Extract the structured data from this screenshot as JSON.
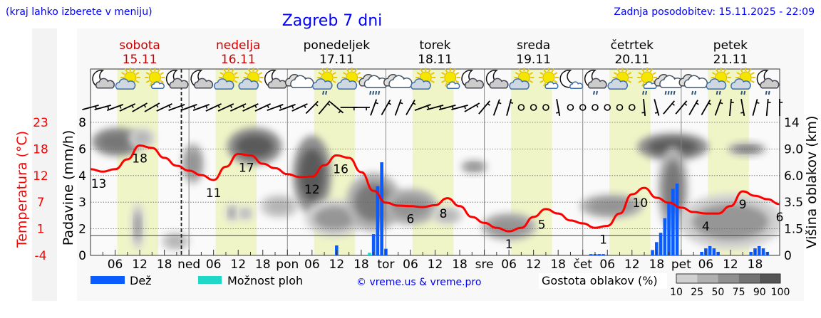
{
  "header": {
    "hint": "(kraj lahko izberete v meniju)",
    "title": "Zagreb 7 dni",
    "updated": "Zadnja posodobitev: 15.11.2025 - 22:09"
  },
  "legend": {
    "rain": "Dež",
    "shower": "Možnost ploh",
    "copyright": "© vreme.us & vreme.pro",
    "cloud_density": "Gostota oblakov (%)",
    "scale_labels": [
      "10",
      "25",
      "50",
      "75",
      "90",
      "100"
    ],
    "scale_colors": [
      "#d0d0d0",
      "#b0b0b0",
      "#909090",
      "#737373",
      "#555555"
    ]
  },
  "colors": {
    "temperature": "#ff0000",
    "rain": "#0a5cff",
    "shower": "#1fd8c8",
    "weekend": "#cc0000",
    "daylight": "#f0f5c8",
    "header": "#0000ff"
  },
  "chart_data": {
    "type": "line",
    "start": "2025-11-15T00:00",
    "end": "2025-11-22T00:00",
    "now": "2025-11-15T22:09",
    "days": [
      {
        "name": "sobota",
        "date": "15.11",
        "weekend": true
      },
      {
        "name": "nedelja",
        "date": "16.11",
        "weekend": true
      },
      {
        "name": "ponedeljek",
        "date": "17.11",
        "weekend": false
      },
      {
        "name": "torek",
        "date": "18.11",
        "weekend": false
      },
      {
        "name": "sreda",
        "date": "19.11",
        "weekend": false
      },
      {
        "name": "četrtek",
        "date": "20.11",
        "weekend": false
      },
      {
        "name": "petek",
        "date": "21.11",
        "weekend": false
      }
    ],
    "x_tick_labels": [
      "06",
      "12",
      "18"
    ],
    "day_abbr": [
      "",
      "ned",
      "pon",
      "tor",
      "sre",
      "čet",
      "pet"
    ],
    "daylight_hours": [
      6.5,
      16.5
    ],
    "temperature": {
      "label": "Temperatura (°C)",
      "ticks": [
        "23",
        "18",
        "12",
        "7",
        "1",
        "-4"
      ],
      "range": [
        -4,
        23
      ],
      "step_hours": 3,
      "values": [
        13.5,
        13,
        13.5,
        15.5,
        18.3,
        17.8,
        15.8,
        14.2,
        13.2,
        12.3,
        11.3,
        14,
        16.6,
        16.3,
        14.6,
        13.7,
        12.5,
        11.9,
        12,
        14.3,
        16.3,
        15.8,
        12.9,
        9.1,
        6.7,
        6.1,
        6,
        5.8,
        6.2,
        7.6,
        6,
        3.8,
        2.6,
        1.6,
        0.9,
        1.6,
        3.8,
        5.4,
        4.5,
        3.1,
        2.5,
        1.6,
        2,
        4.5,
        8.4,
        9.7,
        7.7,
        6.7,
        5.7,
        4.8,
        4.5,
        4.5,
        6,
        9,
        8.1,
        7.4,
        6.4
      ],
      "annotations": [
        {
          "t": "2025-11-15T02:00",
          "text": "13"
        },
        {
          "t": "2025-11-15T12:00",
          "text": "18"
        },
        {
          "t": "2025-11-16T06:00",
          "text": "11"
        },
        {
          "t": "2025-11-16T14:00",
          "text": "17"
        },
        {
          "t": "2025-11-17T06:00",
          "text": "12"
        },
        {
          "t": "2025-11-17T13:00",
          "text": "16"
        },
        {
          "t": "2025-11-18T06:00",
          "text": "6"
        },
        {
          "t": "2025-11-18T14:00",
          "text": "8"
        },
        {
          "t": "2025-11-19T06:00",
          "text": "1"
        },
        {
          "t": "2025-11-19T14:00",
          "text": "5"
        },
        {
          "t": "2025-11-20T05:00",
          "text": "1"
        },
        {
          "t": "2025-11-20T14:00",
          "text": "10"
        },
        {
          "t": "2025-11-21T06:00",
          "text": "4"
        },
        {
          "t": "2025-11-21T15:00",
          "text": "9"
        },
        {
          "t": "2025-11-22T00:00",
          "text": "6"
        }
      ]
    },
    "precipitation": {
      "label": "Padavine (mm/h)",
      "ticks": [
        "8",
        "6",
        "4",
        "3",
        "2",
        "0"
      ],
      "tick_values": [
        8,
        6,
        4,
        3,
        2,
        0
      ],
      "bars": [
        {
          "t": "2025-11-17T12:00",
          "mm": 0.75,
          "kind": "rain"
        },
        {
          "t": "2025-11-17T20:00",
          "mm": 0.2,
          "kind": "shower"
        },
        {
          "t": "2025-11-17T21:00",
          "mm": 1.6,
          "kind": "rain"
        },
        {
          "t": "2025-11-17T22:00",
          "mm": 3.6,
          "kind": "rain"
        },
        {
          "t": "2025-11-17T23:00",
          "mm": 5.0,
          "kind": "rain"
        },
        {
          "t": "2025-11-18T00:00",
          "mm": 0.5,
          "kind": "rain"
        },
        {
          "t": "2025-11-20T02:00",
          "mm": 0.1,
          "kind": "rain"
        },
        {
          "t": "2025-11-20T03:00",
          "mm": 0.1,
          "kind": "rain"
        },
        {
          "t": "2025-11-20T04:00",
          "mm": 0.1,
          "kind": "rain"
        },
        {
          "t": "2025-11-20T05:00",
          "mm": 0.1,
          "kind": "rain"
        },
        {
          "t": "2025-11-20T17:00",
          "mm": 0.4,
          "kind": "rain"
        },
        {
          "t": "2025-11-20T18:00",
          "mm": 1.0,
          "kind": "rain"
        },
        {
          "t": "2025-11-20T19:00",
          "mm": 1.7,
          "kind": "rain"
        },
        {
          "t": "2025-11-20T20:00",
          "mm": 2.4,
          "kind": "rain"
        },
        {
          "t": "2025-11-20T21:00",
          "mm": 3.0,
          "kind": "rain"
        },
        {
          "t": "2025-11-20T22:00",
          "mm": 3.5,
          "kind": "rain"
        },
        {
          "t": "2025-11-20T23:00",
          "mm": 3.7,
          "kind": "rain"
        },
        {
          "t": "2025-11-21T05:00",
          "mm": 0.27,
          "kind": "rain"
        },
        {
          "t": "2025-11-21T06:00",
          "mm": 0.53,
          "kind": "rain"
        },
        {
          "t": "2025-11-21T07:00",
          "mm": 0.7,
          "kind": "rain"
        },
        {
          "t": "2025-11-21T08:00",
          "mm": 0.53,
          "kind": "rain"
        },
        {
          "t": "2025-11-21T09:00",
          "mm": 0.27,
          "kind": "rain"
        },
        {
          "t": "2025-11-21T17:00",
          "mm": 0.27,
          "kind": "rain"
        },
        {
          "t": "2025-11-21T18:00",
          "mm": 0.53,
          "kind": "rain"
        },
        {
          "t": "2025-11-21T19:00",
          "mm": 0.7,
          "kind": "rain"
        },
        {
          "t": "2025-11-21T20:00",
          "mm": 0.53,
          "kind": "rain"
        },
        {
          "t": "2025-11-21T21:00",
          "mm": 0.27,
          "kind": "rain"
        }
      ]
    },
    "cloud_height": {
      "label": "Višina oblakov (km)",
      "ticks": [
        "14",
        "9.0",
        "6.0",
        "3.5",
        "1.5",
        "0"
      ],
      "tick_values": [
        14,
        9,
        6,
        3.5,
        1.5,
        0
      ],
      "clouds": [
        {
          "from": "2025-11-15T01:00",
          "to": "2025-11-15T12:00",
          "km": [
            8.5,
            12.5
          ],
          "density": 85
        },
        {
          "from": "2025-11-15T10:00",
          "to": "2025-11-15T15:00",
          "km": [
            9.5,
            12.5
          ],
          "density": 30
        },
        {
          "from": "2025-11-15T10:30",
          "to": "2025-11-15T12:30",
          "km": [
            0.5,
            3.2
          ],
          "density": 55
        },
        {
          "from": "2025-11-15T18:00",
          "to": "2025-11-15T23:30",
          "km": [
            0.4,
            1.2
          ],
          "density": 30
        },
        {
          "from": "2025-11-15T23:00",
          "to": "2025-11-16T03:00",
          "km": [
            5.5,
            9.5
          ],
          "density": 70
        },
        {
          "from": "2025-11-16T09:30",
          "to": "2025-11-16T11:30",
          "km": [
            2.2,
            3.2
          ],
          "density": 55
        },
        {
          "from": "2025-11-16T12:30",
          "to": "2025-11-16T15:00",
          "km": [
            2.3,
            3.0
          ],
          "density": 45
        },
        {
          "from": "2025-11-16T10:00",
          "to": "2025-11-16T22:00",
          "km": [
            7.5,
            12.5
          ],
          "density": 90
        },
        {
          "from": "2025-11-16T18:00",
          "to": "2025-11-17T02:00",
          "km": [
            2.5,
            4.0
          ],
          "density": 45
        },
        {
          "from": "2025-11-17T02:00",
          "to": "2025-11-17T10:00",
          "km": [
            2.8,
            11.0
          ],
          "density": 90
        },
        {
          "from": "2025-11-17T05:00",
          "to": "2025-11-17T18:00",
          "km": [
            1.2,
            3.5
          ],
          "density": 55
        },
        {
          "from": "2025-11-17T15:00",
          "to": "2025-11-18T03:00",
          "km": [
            1.5,
            6.0
          ],
          "density": 80
        },
        {
          "from": "2025-11-18T00:00",
          "to": "2025-11-18T12:00",
          "km": [
            2.0,
            4.5
          ],
          "density": 60
        },
        {
          "from": "2025-11-18T12:00",
          "to": "2025-11-18T18:00",
          "km": [
            2.0,
            3.0
          ],
          "density": 35
        },
        {
          "from": "2025-11-18T19:00",
          "to": "2025-11-18T24:00",
          "km": [
            6.5,
            7.5
          ],
          "density": 65
        },
        {
          "from": "2025-11-19T00:00",
          "to": "2025-11-19T12:00",
          "km": [
            1.0,
            2.5
          ],
          "density": 60
        },
        {
          "from": "2025-11-20T00:00",
          "to": "2025-11-20T14:00",
          "km": [
            2.5,
            4.0
          ],
          "density": 60
        },
        {
          "from": "2025-11-20T14:00",
          "to": "2025-11-21T06:00",
          "km": [
            8.0,
            11.5
          ],
          "density": 90
        },
        {
          "from": "2025-11-20T19:00",
          "to": "2025-11-21T01:00",
          "km": [
            1.5,
            9.0
          ],
          "density": 80
        },
        {
          "from": "2025-11-21T00:00",
          "to": "2025-11-22T00:00",
          "km": [
            0.5,
            4.0
          ],
          "density": 50
        },
        {
          "from": "2025-11-21T12:00",
          "to": "2025-11-21T20:00",
          "km": [
            8.5,
            9.8
          ],
          "density": 80
        }
      ]
    },
    "weather_icons": [
      "moon-cloud",
      "sun-cloud",
      "sun-small-cloud",
      "moon-cloud",
      "moon-cloud",
      "sun-cloud",
      "sun-cloud",
      "moon-cloud",
      "cloud",
      "sun-cloud-light-rain",
      "sun-cloud",
      "cloud-rain",
      "cloud",
      "sun-cloud",
      "sun-small-cloud",
      "moon-cloud",
      "moon-cloud",
      "sun-cloud",
      "sun-small-cloud",
      "moon-small-cloud",
      "moon-cloud-light-rain",
      "sun-cloud",
      "sun-small-cloud-light-rain",
      "cloud-rain",
      "cloud-light-rain",
      "sun-cloud-light-rain",
      "sun-cloud-light-rain",
      "moon-cloud-light-rain"
    ],
    "wind_direction_deg": [
      75,
      75,
      70,
      65,
      60,
      60,
      65,
      70,
      70,
      70,
      65,
      65,
      65,
      65,
      65,
      70,
      70,
      65,
      45,
      40,
      130,
      90,
      90,
      20,
      30,
      20,
      30,
      70,
      75,
      75,
      75,
      60,
      40,
      20,
      15,
      null,
      null,
      null,
      170,
      null,
      null,
      null,
      null,
      null,
      null,
      175,
      165,
      40,
      40,
      30,
      30,
      20,
      5,
      170,
      15,
      5,
      0
    ]
  }
}
